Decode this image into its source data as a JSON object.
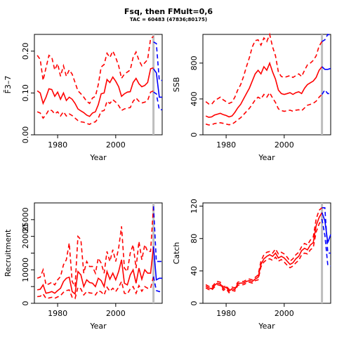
{
  "title": "Fsq, then FMult=0,6",
  "subtitle": "TAC = 60483 (47836;80175)",
  "colors": {
    "historic": "#ff0000",
    "projection": "#0000ff",
    "divider": "#bebebe"
  },
  "chart_data": [
    {
      "type": "line",
      "xlabel": "Year",
      "ylabel": "F̄3–7",
      "xlim": [
        1972,
        2016
      ],
      "ylim": [
        0,
        0.24
      ],
      "x_ticks": [
        1980,
        2000
      ],
      "y_ticks": [
        0.0,
        0.1,
        0.2
      ],
      "y_tick_labels": [
        "0.00",
        "0.10",
        "0.20"
      ],
      "divider_year": 2013,
      "historic": {
        "x": [
          1973,
          1974,
          1975,
          1976,
          1977,
          1978,
          1979,
          1980,
          1981,
          1982,
          1983,
          1984,
          1985,
          1986,
          1987,
          1988,
          1989,
          1990,
          1991,
          1992,
          1993,
          1994,
          1995,
          1996,
          1997,
          1998,
          1999,
          2000,
          2001,
          2002,
          2003,
          2004,
          2005,
          2006,
          2007,
          2008,
          2009,
          2010,
          2011,
          2012,
          2013
        ],
        "median": [
          0.105,
          0.1,
          0.075,
          0.09,
          0.11,
          0.108,
          0.092,
          0.102,
          0.085,
          0.1,
          0.082,
          0.09,
          0.085,
          0.075,
          0.062,
          0.057,
          0.053,
          0.047,
          0.044,
          0.052,
          0.055,
          0.072,
          0.098,
          0.1,
          0.132,
          0.125,
          0.138,
          0.128,
          0.115,
          0.092,
          0.098,
          0.102,
          0.103,
          0.125,
          0.135,
          0.122,
          0.115,
          0.118,
          0.125,
          0.158,
          0.16
        ],
        "upper": [
          0.19,
          0.18,
          0.13,
          0.16,
          0.19,
          0.185,
          0.155,
          0.17,
          0.14,
          0.165,
          0.14,
          0.155,
          0.145,
          0.125,
          0.105,
          0.098,
          0.09,
          0.08,
          0.075,
          0.088,
          0.092,
          0.12,
          0.162,
          0.168,
          0.195,
          0.185,
          0.2,
          0.185,
          0.165,
          0.135,
          0.145,
          0.15,
          0.155,
          0.185,
          0.198,
          0.178,
          0.165,
          0.172,
          0.18,
          0.23,
          0.235
        ],
        "lower": [
          0.055,
          0.052,
          0.04,
          0.048,
          0.06,
          0.058,
          0.05,
          0.055,
          0.045,
          0.055,
          0.045,
          0.05,
          0.046,
          0.04,
          0.034,
          0.031,
          0.03,
          0.027,
          0.025,
          0.029,
          0.031,
          0.04,
          0.056,
          0.058,
          0.08,
          0.075,
          0.084,
          0.078,
          0.07,
          0.058,
          0.062,
          0.064,
          0.065,
          0.08,
          0.088,
          0.08,
          0.076,
          0.078,
          0.082,
          0.102,
          0.105
        ]
      },
      "projection": {
        "x": [
          2013,
          2014,
          2015,
          2016
        ],
        "median": [
          0.158,
          0.148,
          0.09,
          0.09
        ],
        "upper": [
          0.222,
          0.218,
          0.13,
          0.13
        ],
        "lower": [
          0.102,
          0.098,
          0.06,
          0.06
        ]
      }
    },
    {
      "type": "line",
      "xlabel": "Year",
      "ylabel": "SSB",
      "xlim": [
        1972,
        2016
      ],
      "ylim": [
        0,
        1120
      ],
      "x_ticks": [
        1980,
        2000
      ],
      "y_ticks": [
        0,
        400,
        800
      ],
      "y_tick_labels": [
        "0",
        "400",
        "800"
      ],
      "divider_year": 2013,
      "historic": {
        "x": [
          1973,
          1974,
          1975,
          1976,
          1977,
          1978,
          1979,
          1980,
          1981,
          1982,
          1983,
          1984,
          1985,
          1986,
          1987,
          1988,
          1989,
          1990,
          1991,
          1992,
          1993,
          1994,
          1995,
          1996,
          1997,
          1998,
          1999,
          2000,
          2001,
          2002,
          2003,
          2004,
          2005,
          2006,
          2007,
          2008,
          2009,
          2010,
          2011,
          2012,
          2013
        ],
        "median": [
          210,
          195,
          200,
          220,
          230,
          240,
          225,
          215,
          200,
          210,
          250,
          300,
          340,
          400,
          460,
          520,
          600,
          680,
          720,
          680,
          760,
          720,
          800,
          700,
          620,
          500,
          460,
          450,
          460,
          470,
          450,
          470,
          480,
          460,
          520,
          560,
          580,
          600,
          640,
          720,
          760
        ],
        "upper": [
          370,
          345,
          340,
          380,
          400,
          420,
          390,
          370,
          350,
          365,
          420,
          500,
          560,
          650,
          760,
          860,
          980,
          1050,
          1060,
          1000,
          1080,
          1040,
          1120,
          980,
          880,
          700,
          650,
          640,
          650,
          660,
          640,
          660,
          680,
          650,
          720,
          780,
          800,
          830,
          880,
          990,
          1040
        ],
        "lower": [
          120,
          110,
          112,
          125,
          130,
          135,
          128,
          120,
          112,
          118,
          140,
          168,
          190,
          225,
          260,
          295,
          340,
          390,
          420,
          400,
          450,
          420,
          470,
          410,
          360,
          290,
          270,
          262,
          268,
          275,
          262,
          275,
          280,
          268,
          300,
          330,
          340,
          352,
          375,
          420,
          450
        ]
      },
      "projection": {
        "x": [
          2013,
          2014,
          2015,
          2016
        ],
        "median": [
          760,
          730,
          730,
          740
        ],
        "upper": [
          1040,
          1060,
          1120,
          1110
        ],
        "lower": [
          450,
          500,
          460,
          460
        ]
      }
    },
    {
      "type": "line",
      "xlabel": "Year",
      "ylabel": "Recruitment",
      "xlim": [
        1972,
        2016
      ],
      "ylim": [
        0,
        30000
      ],
      "x_ticks": [
        1980,
        2000
      ],
      "y_ticks": [
        0,
        5000,
        10000,
        15000,
        20000,
        25000
      ],
      "y_tick_labels": [
        "0",
        "",
        "10000",
        "",
        "20000",
        "25000"
      ],
      "divider_year": 2013,
      "historic": {
        "x": [
          1973,
          1974,
          1975,
          1976,
          1977,
          1978,
          1979,
          1980,
          1981,
          1982,
          1983,
          1984,
          1985,
          1986,
          1987,
          1988,
          1989,
          1990,
          1991,
          1992,
          1993,
          1994,
          1995,
          1996,
          1997,
          1998,
          1999,
          2000,
          2001,
          2002,
          2003,
          2004,
          2005,
          2006,
          2007,
          2008,
          2009,
          2010,
          2011,
          2012,
          2013
        ],
        "median": [
          4000,
          4200,
          5500,
          3000,
          3200,
          3500,
          3000,
          3800,
          4500,
          6500,
          7500,
          7800,
          3500,
          2800,
          9500,
          8500,
          5000,
          7000,
          6200,
          6000,
          5000,
          7500,
          6800,
          5000,
          9500,
          7200,
          9000,
          7000,
          9500,
          13000,
          6000,
          5500,
          8500,
          10000,
          6000,
          10500,
          7200,
          10000,
          9000,
          9000,
          17000
        ],
        "upper": [
          7500,
          7800,
          10000,
          5500,
          5800,
          6300,
          5500,
          7000,
          8000,
          11500,
          13000,
          18000,
          6500,
          5000,
          20000,
          19000,
          9000,
          12500,
          11000,
          11000,
          9000,
          13500,
          12000,
          9000,
          15500,
          12500,
          16000,
          12500,
          16500,
          23000,
          10500,
          9500,
          15000,
          17500,
          10500,
          18500,
          13000,
          17500,
          15500,
          15500,
          29000
        ],
        "lower": [
          2000,
          2100,
          2800,
          1500,
          1600,
          1800,
          1500,
          1900,
          2300,
          3300,
          3800,
          4000,
          1800,
          1400,
          4800,
          4300,
          2500,
          3500,
          3100,
          3000,
          2500,
          3800,
          3400,
          2500,
          4800,
          3600,
          4500,
          3500,
          4800,
          6500,
          3000,
          2800,
          4300,
          5000,
          3000,
          5300,
          3600,
          5000,
          4500,
          4500,
          8000
        ]
      },
      "projection": {
        "x": [
          2013,
          2014,
          2015,
          2016
        ],
        "median": [
          17000,
          7000,
          7500,
          7500
        ],
        "upper": [
          29000,
          12500,
          12500,
          12500
        ],
        "lower": [
          8000,
          3800,
          3500,
          3500
        ]
      }
    },
    {
      "type": "line",
      "xlabel": "Year",
      "ylabel": "Catch",
      "xlim": [
        1972,
        2016
      ],
      "ylim": [
        0,
        124
      ],
      "x_ticks": [
        1980,
        2000
      ],
      "y_ticks": [
        0,
        40,
        80,
        120
      ],
      "y_tick_labels": [
        "0",
        "40",
        "80",
        "120"
      ],
      "divider_year": 2013,
      "historic": {
        "x": [
          1973,
          1974,
          1975,
          1976,
          1977,
          1978,
          1979,
          1980,
          1981,
          1982,
          1983,
          1984,
          1985,
          1986,
          1987,
          1988,
          1989,
          1990,
          1991,
          1992,
          1993,
          1994,
          1995,
          1996,
          1997,
          1998,
          1999,
          2000,
          2001,
          2002,
          2003,
          2004,
          2005,
          2006,
          2007,
          2008,
          2009,
          2010,
          2011,
          2012,
          2013
        ],
        "median": [
          21,
          19,
          18,
          22,
          25,
          24,
          18,
          20,
          15,
          18,
          17,
          24,
          25,
          25,
          27,
          28,
          27,
          30,
          32,
          48,
          55,
          58,
          60,
          58,
          62,
          56,
          58,
          56,
          52,
          48,
          50,
          55,
          58,
          65,
          68,
          66,
          72,
          75,
          96,
          106,
          112
        ],
        "upper": [
          23,
          21,
          20,
          24,
          27,
          26,
          20,
          22,
          17,
          20,
          19,
          26,
          27,
          27,
          29,
          30,
          29,
          32,
          35,
          52,
          60,
          63,
          64,
          62,
          67,
          61,
          63,
          61,
          57,
          52,
          55,
          60,
          63,
          70,
          74,
          72,
          78,
          82,
          104,
          115,
          118
        ],
        "lower": [
          19,
          17,
          16,
          20,
          23,
          22,
          16,
          18,
          13,
          16,
          15,
          22,
          23,
          23,
          25,
          26,
          25,
          28,
          29,
          45,
          51,
          54,
          55,
          53,
          57,
          52,
          54,
          51,
          47,
          44,
          46,
          50,
          53,
          60,
          62,
          61,
          66,
          69,
          88,
          98,
          104
        ]
      },
      "projection": {
        "x": [
          2013,
          2014,
          2015,
          2016
        ],
        "median": [
          112,
          102,
          75,
          85
        ],
        "upper": [
          118,
          118,
          62,
          62
        ],
        "lower": [
          104,
          84,
          47,
          46
        ]
      }
    }
  ]
}
